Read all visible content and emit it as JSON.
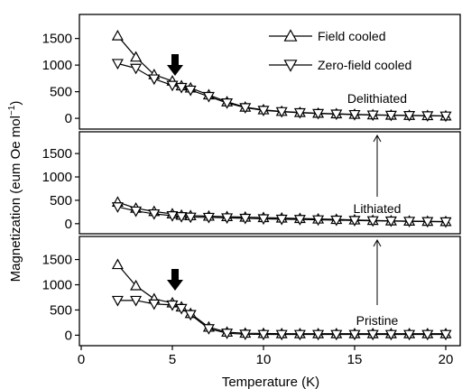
{
  "chart_data": {
    "type": "line",
    "xlabel": "Temperature (K)",
    "ylabel_main": "Magnetization (eum Oe mol",
    "ylabel_sup": "−1",
    "ylabel_close": ")",
    "xlim": [
      0,
      20
    ],
    "ylim": [
      -100,
      1850
    ],
    "x_ticks": [
      0,
      5,
      10,
      15,
      20
    ],
    "y_ticks": [
      0,
      500,
      1000,
      1500
    ],
    "legend": {
      "position": "top-right",
      "entries": [
        {
          "label": "Field cooled",
          "marker": "triangle-up"
        },
        {
          "label": "Zero-field cooled",
          "marker": "triangle-down"
        }
      ]
    },
    "x": [
      2,
      3,
      4,
      5,
      5.5,
      6,
      7,
      8,
      9,
      10,
      11,
      12,
      13,
      14,
      15,
      16,
      17,
      18,
      19,
      20
    ],
    "panels": [
      {
        "label": "Delithiated",
        "position": "top",
        "arrow_at_x": 5,
        "series": [
          {
            "name": "Field cooled",
            "marker": "triangle-up",
            "values": [
              1550,
              1150,
              820,
              700,
              610,
              570,
              440,
              310,
              210,
              160,
              130,
              110,
              95,
              85,
              75,
              65,
              60,
              55,
              50,
              45
            ]
          },
          {
            "name": "Zero-field cooled",
            "marker": "triangle-down",
            "values": [
              1030,
              940,
              740,
              620,
              580,
              530,
              410,
              290,
              200,
              150,
              125,
              105,
              90,
              80,
              70,
              62,
              57,
              52,
              48,
              43
            ]
          }
        ]
      },
      {
        "label": "Lithiated",
        "position": "middle",
        "arrow_at_x": null,
        "series": [
          {
            "name": "Field cooled",
            "marker": "triangle-up",
            "values": [
              460,
              330,
              260,
              210,
              180,
              170,
              160,
              150,
              140,
              130,
              120,
              110,
              100,
              90,
              80,
              70,
              60,
              55,
              50,
              45
            ]
          },
          {
            "name": "Zero-field cooled",
            "marker": "triangle-down",
            "values": [
              360,
              270,
              210,
              170,
              150,
              140,
              135,
              125,
              115,
              105,
              95,
              90,
              82,
              75,
              68,
              62,
              56,
              50,
              45,
              40
            ]
          }
        ]
      },
      {
        "label": "Pristine",
        "position": "bottom",
        "arrow_at_x": 5,
        "series": [
          {
            "name": "Field cooled",
            "marker": "triangle-up",
            "values": [
              1400,
              980,
              720,
              640,
              560,
              430,
              160,
              60,
              40,
              35,
              30,
              30,
              30,
              30,
              30,
              30,
              30,
              30,
              30,
              30
            ]
          },
          {
            "name": "Zero-field cooled",
            "marker": "triangle-down",
            "values": [
              690,
              690,
              620,
              600,
              530,
              410,
              130,
              40,
              20,
              15,
              15,
              15,
              15,
              15,
              15,
              15,
              15,
              15,
              15,
              15
            ]
          }
        ]
      }
    ]
  }
}
